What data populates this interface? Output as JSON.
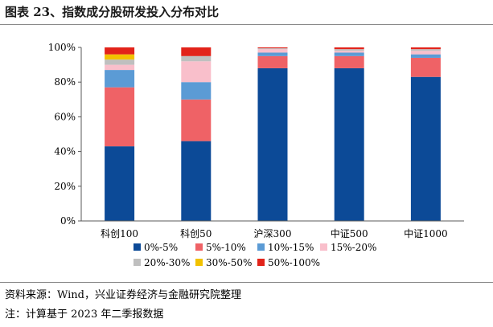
{
  "header": {
    "title": "图表 23、指数成分股研发投入分布对比"
  },
  "footer": {
    "source": "资料来源：Wind，兴业证券经济与金融研究院整理",
    "note": "注：计算基于 2023 年二季报数据"
  },
  "chart_data": {
    "type": "bar",
    "stacked": true,
    "percent": true,
    "categories": [
      "科创100",
      "科创50",
      "沪深300",
      "中证500",
      "中证1000"
    ],
    "y_ticks": [
      "0%",
      "20%",
      "40%",
      "60%",
      "80%",
      "100%"
    ],
    "ylim": [
      0,
      100
    ],
    "grid": false,
    "legend_position": "bottom",
    "series": [
      {
        "name": "0%-5%",
        "color": "#0c4a97",
        "values": [
          43,
          46,
          88,
          88,
          83
        ]
      },
      {
        "name": "5%-10%",
        "color": "#ef6266",
        "values": [
          34,
          24,
          7,
          7,
          11
        ]
      },
      {
        "name": "10%-15%",
        "color": "#5b9bd5",
        "values": [
          10,
          10,
          2,
          2,
          2
        ]
      },
      {
        "name": "15%-20%",
        "color": "#f9bfcb",
        "values": [
          3,
          12,
          2,
          1,
          2
        ]
      },
      {
        "name": "20%-30%",
        "color": "#bfbfbf",
        "values": [
          3,
          3,
          0.5,
          1,
          1
        ]
      },
      {
        "name": "30%-50%",
        "color": "#f2c200",
        "values": [
          3,
          0,
          0,
          0,
          0
        ]
      },
      {
        "name": "50%-100%",
        "color": "#e2231a",
        "values": [
          4,
          5,
          0.5,
          1,
          1
        ]
      }
    ]
  }
}
